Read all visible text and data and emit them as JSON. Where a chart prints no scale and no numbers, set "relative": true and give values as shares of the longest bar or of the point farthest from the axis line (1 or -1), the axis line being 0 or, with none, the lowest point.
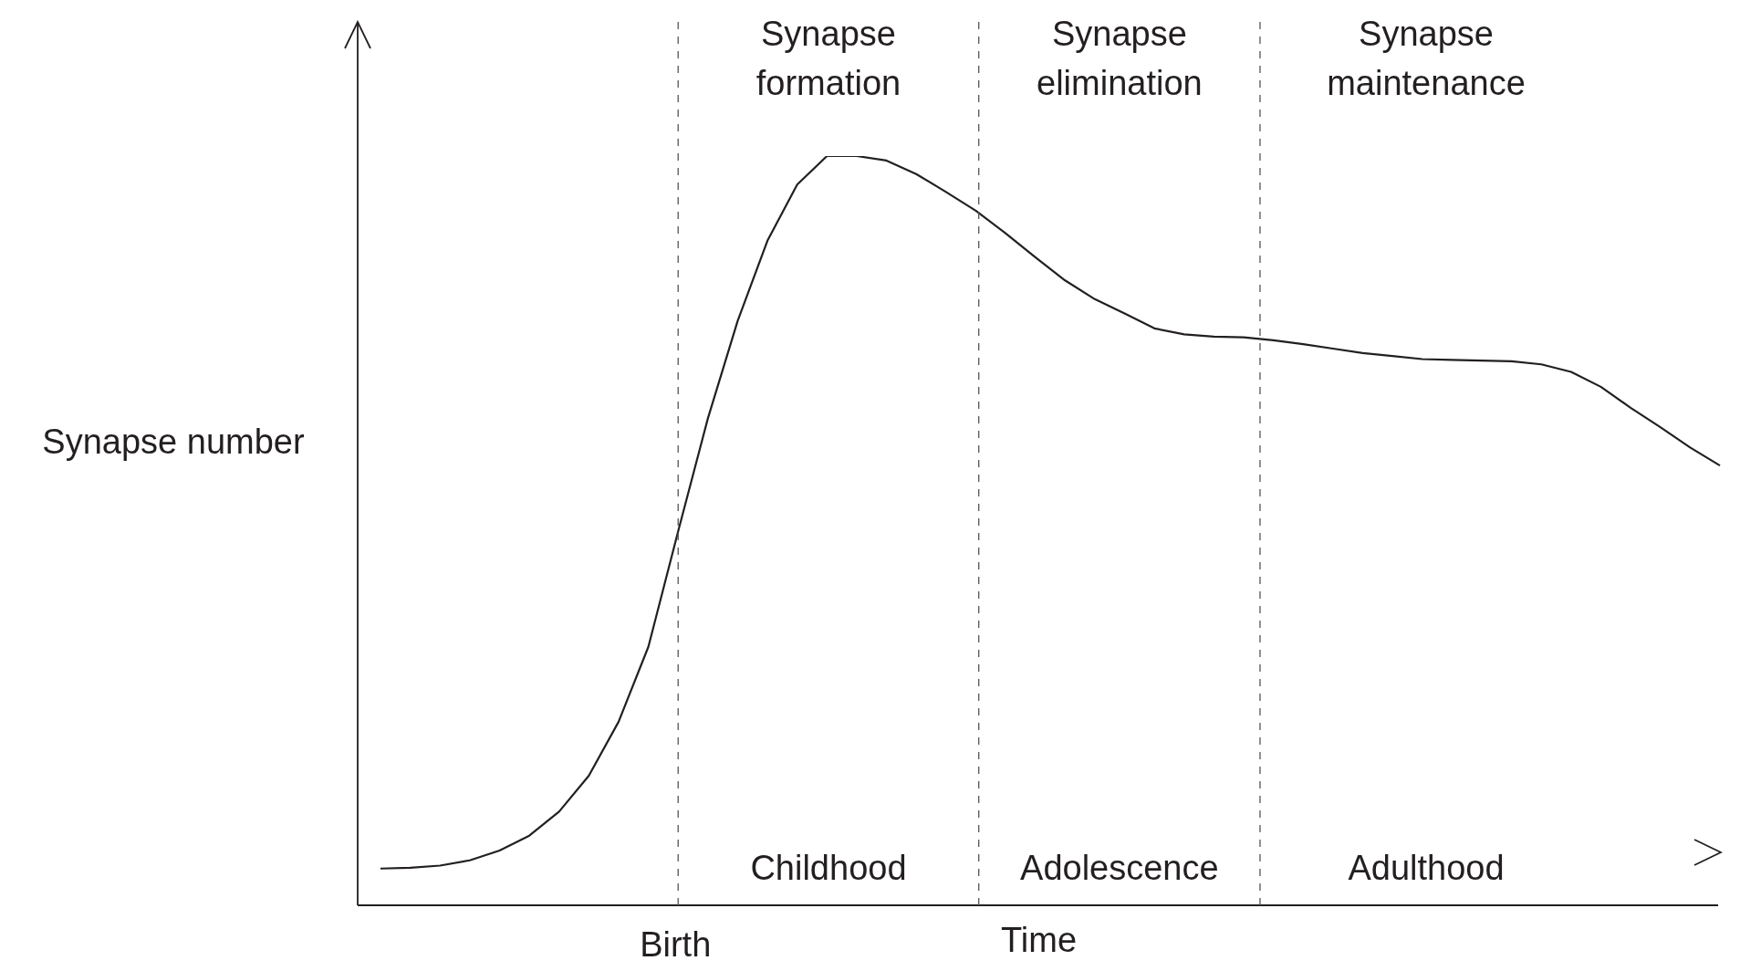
{
  "chart_data": {
    "type": "line",
    "relative": true,
    "xlabel": "Time",
    "ylabel": "Synapse number",
    "tick_labels": false,
    "legend": false,
    "marker": "none",
    "line_style": "solid",
    "categories": [
      null,
      null,
      null,
      null,
      null,
      null,
      null,
      null,
      null,
      null,
      null,
      null,
      null,
      null,
      null,
      null,
      null,
      null,
      null,
      null,
      null,
      null,
      null,
      null,
      null,
      null,
      null,
      null,
      null,
      null,
      null,
      null,
      null,
      null,
      null,
      null,
      null,
      null,
      null,
      null,
      null,
      null,
      null,
      null,
      null,
      null
    ],
    "series": [
      {
        "color": "#231f20",
        "values": [
          0.049,
          0.05,
          0.053,
          0.06,
          0.073,
          0.093,
          0.125,
          0.173,
          0.245,
          0.345,
          0.499,
          0.65,
          0.78,
          0.887,
          0.962,
          1.0,
          1.0,
          0.994,
          0.976,
          0.952,
          0.927,
          0.897,
          0.865,
          0.834,
          0.809,
          0.79,
          0.77,
          0.762,
          0.759,
          0.758,
          0.754,
          0.749,
          0.743,
          0.737,
          0.733,
          0.729,
          0.728,
          0.727,
          0.726,
          0.722,
          0.712,
          0.692,
          0.664,
          0.638,
          0.611,
          0.587
        ]
      }
    ],
    "annotations": [
      "Birth",
      "Synapse formation",
      "Synapse elimination",
      "Synapse maintenance",
      "Childhood",
      "Adolescence",
      "Adulthood"
    ]
  }
}
